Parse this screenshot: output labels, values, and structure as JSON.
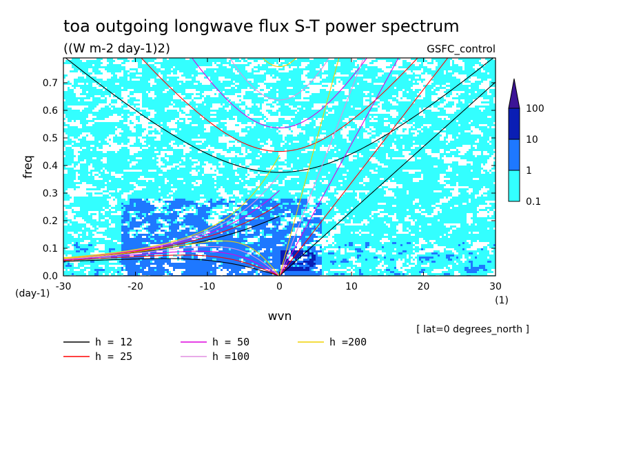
{
  "chart_data": {
    "type": "heatmap",
    "title": "toa outgoing longwave flux S-T power spectrum",
    "subtitle": "((W m-2 day-1)2)",
    "dataset": "GSFC_control",
    "xlabel": "wvn",
    "xunit": "(1)",
    "ylabel": "freq",
    "yunit": "(day-1)",
    "xlim": [
      -30,
      30
    ],
    "ylim": [
      0,
      0.79
    ],
    "xticks": [
      "-30",
      "-20",
      "-10",
      "0",
      "10",
      "20",
      "30"
    ],
    "yticks": [
      "0.0",
      "0.1",
      "0.2",
      "0.3",
      "0.4",
      "0.5",
      "0.6",
      "0.7"
    ],
    "annotation": "[ lat=0 degrees_north ]",
    "colorbar": {
      "levels": [
        "0.1",
        "1",
        "10",
        "100"
      ],
      "colors": [
        "#33ffff",
        "#1e78ff",
        "#0a1eb4",
        "#3c1496"
      ]
    },
    "dispersion_curves": [
      {
        "label": "h = 12",
        "equivalent_depth_m": 12,
        "color": "#000000"
      },
      {
        "label": "h = 25",
        "equivalent_depth_m": 25,
        "color": "#ff0000"
      },
      {
        "label": "h = 50",
        "equivalent_depth_m": 50,
        "color": "#dd00dd"
      },
      {
        "label": "h =100",
        "equivalent_depth_m": 100,
        "color": "#e08ee0"
      },
      {
        "label": "h =200",
        "equivalent_depth_m": 200,
        "color": "#f0d000"
      }
    ],
    "curve_families": [
      "kelvin",
      "equatorial-rossby-n1",
      "inertia-gravity-n1",
      "mixed-rossby-gravity"
    ],
    "power_regions": [
      {
        "level": "10",
        "x": [
          -22,
          6
        ],
        "y": [
          0.0,
          0.28
        ],
        "note": "enhanced power at low frequency, all wavenumbers"
      },
      {
        "level": "100",
        "x": [
          0,
          5
        ],
        "y": [
          0.02,
          0.09
        ],
        "note": "peak near eastward low wavenumbers"
      }
    ]
  }
}
